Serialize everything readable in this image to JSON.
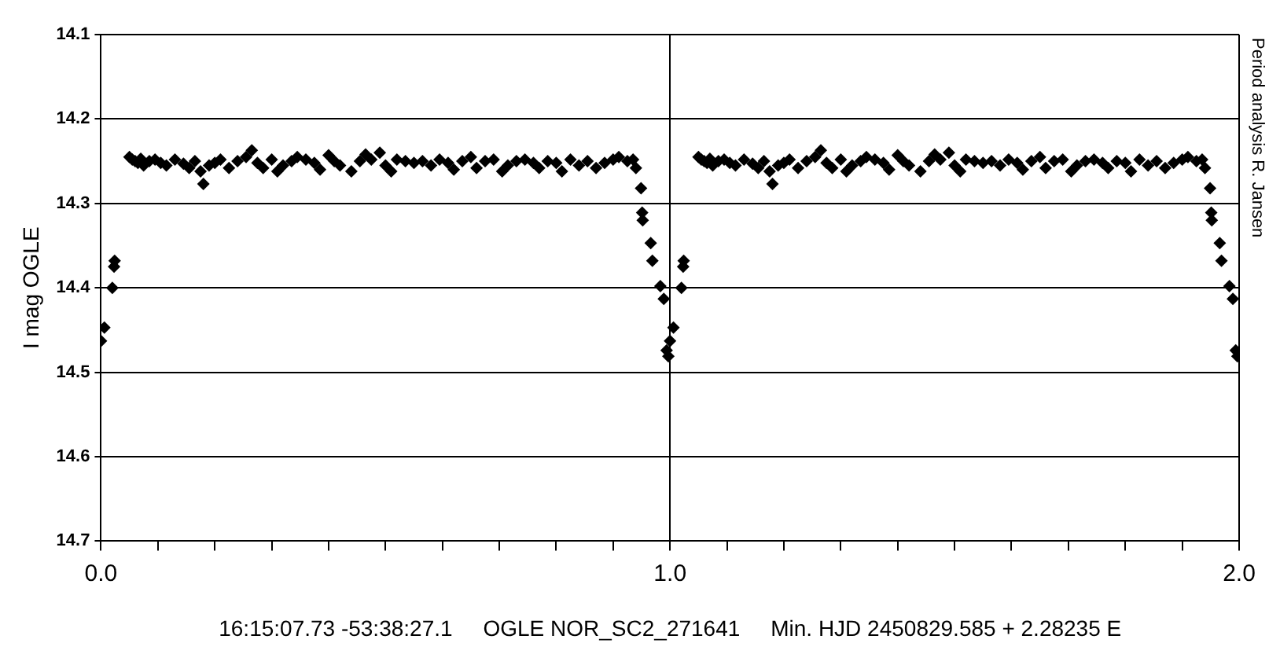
{
  "chart_data": {
    "type": "scatter",
    "xlabel": "16:15:07.73 -53:38:27.1     OGLE NOR_SC2_271641     Min. HJD 2450829.585 + 2.28235 E",
    "ylabel": "I mag OGLE",
    "annotations": [
      "Period analysis R. Jansen"
    ],
    "xlim": [
      0,
      2
    ],
    "xticks": [
      {
        "value": 0,
        "label": "0.0"
      },
      {
        "value": 0.1,
        "label": null
      },
      {
        "value": 0.2,
        "label": null
      },
      {
        "value": 0.3,
        "label": null
      },
      {
        "value": 0.4,
        "label": null
      },
      {
        "value": 0.5,
        "label": null
      },
      {
        "value": 0.6,
        "label": null
      },
      {
        "value": 0.7,
        "label": null
      },
      {
        "value": 0.8,
        "label": null
      },
      {
        "value": 0.9,
        "label": null
      },
      {
        "value": 1,
        "label": "1.0"
      },
      {
        "value": 1.1,
        "label": null
      },
      {
        "value": 1.2,
        "label": null
      },
      {
        "value": 1.3,
        "label": null
      },
      {
        "value": 1.4,
        "label": null
      },
      {
        "value": 1.5,
        "label": null
      },
      {
        "value": 1.6,
        "label": null
      },
      {
        "value": 1.7,
        "label": null
      },
      {
        "value": 1.8,
        "label": null
      },
      {
        "value": 1.9,
        "label": null
      },
      {
        "value": 2,
        "label": "2.0"
      }
    ],
    "ylim": [
      14.7,
      14.1
    ],
    "yticks": [
      14.1,
      14.2,
      14.3,
      14.4,
      14.5,
      14.6,
      14.7
    ],
    "grid": true,
    "marker": "diamond",
    "series": [
      {
        "color": "#000000",
        "x": [
          0,
          0.006,
          0.02,
          0.023,
          0.024,
          0.05,
          0.055,
          0.06,
          0.065,
          0.07,
          0.075,
          0.085,
          0.095,
          0.105,
          0.115,
          0.13,
          0.145,
          0.155,
          0.165,
          0.175,
          0.18,
          0.19,
          0.2,
          0.21,
          0.225,
          0.24,
          0.255,
          0.265,
          0.275,
          0.285,
          0.3,
          0.31,
          0.32,
          0.335,
          0.345,
          0.36,
          0.375,
          0.385,
          0.4,
          0.41,
          0.42,
          0.44,
          0.455,
          0.465,
          0.475,
          0.49,
          0.5,
          0.51,
          0.52,
          0.535,
          0.55,
          0.565,
          0.58,
          0.595,
          0.61,
          0.62,
          0.635,
          0.65,
          0.66,
          0.675,
          0.69,
          0.705,
          0.715,
          0.73,
          0.745,
          0.76,
          0.77,
          0.785,
          0.8,
          0.81,
          0.825,
          0.84,
          0.855,
          0.87,
          0.885,
          0.9,
          0.91,
          0.925,
          0.935,
          0.94,
          0.949,
          0.951,
          0.952,
          0.966,
          0.969,
          0.983,
          0.989,
          0.994,
          0.997,
          1,
          1.006,
          1.02,
          1.023,
          1.024,
          1.05,
          1.055,
          1.06,
          1.065,
          1.07,
          1.075,
          1.085,
          1.095,
          1.105,
          1.115,
          1.13,
          1.145,
          1.155,
          1.165,
          1.175,
          1.18,
          1.19,
          1.2,
          1.21,
          1.225,
          1.24,
          1.255,
          1.265,
          1.275,
          1.285,
          1.3,
          1.31,
          1.32,
          1.335,
          1.345,
          1.36,
          1.375,
          1.385,
          1.4,
          1.41,
          1.42,
          1.44,
          1.455,
          1.465,
          1.475,
          1.49,
          1.5,
          1.51,
          1.52,
          1.535,
          1.55,
          1.565,
          1.58,
          1.595,
          1.61,
          1.62,
          1.635,
          1.65,
          1.66,
          1.675,
          1.69,
          1.705,
          1.715,
          1.73,
          1.745,
          1.76,
          1.77,
          1.785,
          1.8,
          1.81,
          1.825,
          1.84,
          1.855,
          1.87,
          1.885,
          1.9,
          1.91,
          1.925,
          1.935,
          1.94,
          1.949,
          1.951,
          1.952,
          1.966,
          1.969,
          1.983,
          1.989,
          1.994,
          1.997
        ],
        "values": [
          14.463,
          14.447,
          14.4,
          14.375,
          14.368,
          14.245,
          14.248,
          14.25,
          14.252,
          14.247,
          14.255,
          14.25,
          14.248,
          14.252,
          14.255,
          14.248,
          14.253,
          14.258,
          14.25,
          14.262,
          14.277,
          14.255,
          14.252,
          14.248,
          14.258,
          14.25,
          14.245,
          14.237,
          14.252,
          14.258,
          14.248,
          14.262,
          14.255,
          14.25,
          14.245,
          14.248,
          14.252,
          14.26,
          14.243,
          14.25,
          14.255,
          14.262,
          14.25,
          14.242,
          14.248,
          14.24,
          14.255,
          14.262,
          14.248,
          14.25,
          14.252,
          14.25,
          14.255,
          14.248,
          14.252,
          14.26,
          14.25,
          14.245,
          14.258,
          14.25,
          14.248,
          14.262,
          14.255,
          14.25,
          14.248,
          14.252,
          14.258,
          14.25,
          14.252,
          14.262,
          14.248,
          14.255,
          14.25,
          14.258,
          14.252,
          14.248,
          14.245,
          14.25,
          14.248,
          14.258,
          14.282,
          14.311,
          14.32,
          14.347,
          14.368,
          14.398,
          14.413,
          14.474,
          14.481,
          14.463,
          14.447,
          14.4,
          14.375,
          14.368,
          14.245,
          14.248,
          14.25,
          14.252,
          14.247,
          14.255,
          14.25,
          14.248,
          14.252,
          14.255,
          14.248,
          14.253,
          14.258,
          14.25,
          14.262,
          14.277,
          14.255,
          14.252,
          14.248,
          14.258,
          14.25,
          14.245,
          14.237,
          14.252,
          14.258,
          14.248,
          14.262,
          14.255,
          14.25,
          14.245,
          14.248,
          14.252,
          14.26,
          14.243,
          14.25,
          14.255,
          14.262,
          14.25,
          14.242,
          14.248,
          14.24,
          14.255,
          14.262,
          14.248,
          14.25,
          14.252,
          14.25,
          14.255,
          14.248,
          14.252,
          14.26,
          14.25,
          14.245,
          14.258,
          14.25,
          14.248,
          14.262,
          14.255,
          14.25,
          14.248,
          14.252,
          14.258,
          14.25,
          14.252,
          14.262,
          14.248,
          14.255,
          14.25,
          14.258,
          14.252,
          14.248,
          14.245,
          14.25,
          14.248,
          14.258,
          14.282,
          14.311,
          14.32,
          14.347,
          14.368,
          14.398,
          14.413,
          14.474,
          14.481
        ]
      }
    ]
  }
}
